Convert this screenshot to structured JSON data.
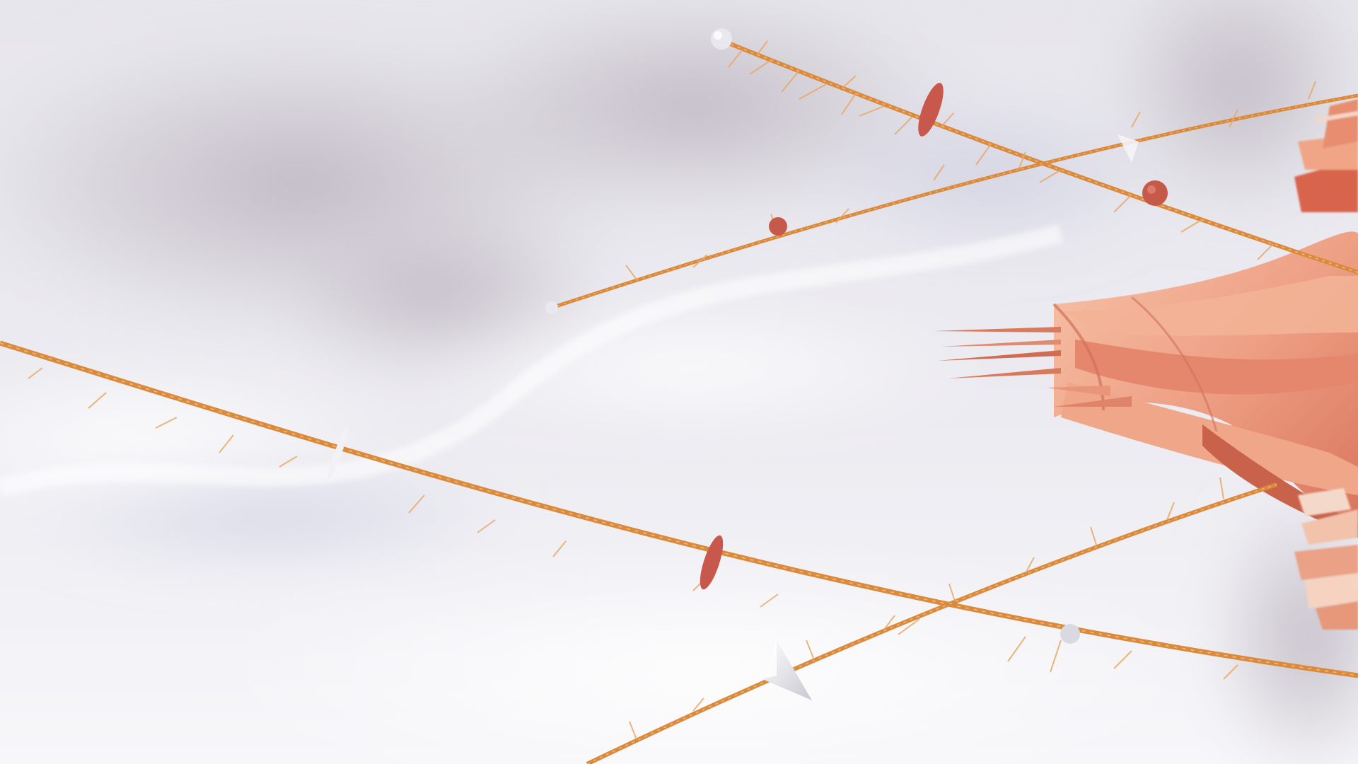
{
  "scene": {
    "subject": "abstract-strings-and-paper-flower",
    "colors": {
      "background_light": "#f4f4f8",
      "background_mid": "#dddbe4",
      "background_dark": "#b9b2bd",
      "string": "#d98a3d",
      "string_dark": "#b96b2a",
      "fiber": "#e9a867",
      "bead_red": "#c8574c",
      "bead_white": "#e8e8ee",
      "flower_light": "#f2b79c",
      "flower_mid": "#e89274",
      "flower_dark": "#c75f47",
      "cone_white": "#f5f5fa"
    }
  }
}
